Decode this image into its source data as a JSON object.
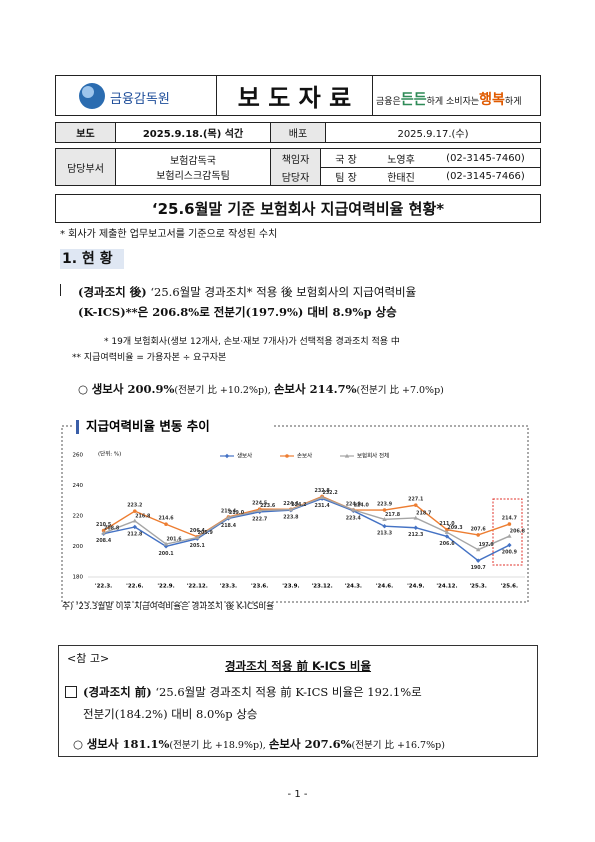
{
  "header": {
    "logo": "금융감독원",
    "title": "보 도 자 료",
    "slogan": [
      "금융은",
      "든든",
      "하게 소비자는",
      "행복",
      "하게"
    ]
  },
  "info_table": {
    "release_label": "보도",
    "release": "2025.9.18.(목) 석간",
    "distribution_label": "배포",
    "distribution": "2025.9.17.(수)",
    "dept_label": "담당부서",
    "dept": [
      "보험감독국",
      "보험리스크감독팀"
    ],
    "contacts": [
      [
        "책임자",
        "국 장",
        "노영후",
        "(02-3145-7460)"
      ],
      [
        "담당자",
        "팀 장",
        "한태진",
        "(02-3145-7466)"
      ]
    ]
  },
  "document": {
    "title": "‘25.6월말 기준 보험회사 지급여력비율 현황*",
    "note": "* 회사가 제출한 업무보고서를 기준으로 작성된 수치",
    "section": "1. 현 황",
    "bullet": [
      "(경과조치 後)",
      " ‘25.6월말 경과조치* 적용 後 보험회사의 지급여력비율",
      "(K-ICS)**은 206.8%로 전분기(197.9%) 대비 8.9%p 상승"
    ],
    "notes": [
      "* 19개 보험회사(생보 12개사, 손보·재보 7개사)가 선택적용 경과조치 적용 中",
      "** 지급여력비율 = 가용자본 ÷ 요구자본"
    ],
    "sub_bullet": [
      "○ ",
      "생보사 200.9%",
      "(전분기 比 +10.2%p), ",
      "손보사 214.7%",
      "(전분기 比 +7.0%p)"
    ]
  },
  "chart_data": {
    "type": "line",
    "title": "지급여력비율 변동 추이",
    "unit": "(단위: %)",
    "categories": [
      "'22.3.",
      "'22.6.",
      "'22.9.",
      "'22.12.",
      "'23.3.",
      "'23.6.",
      "'23.9.",
      "'23.12.",
      "'24.3.",
      "'24.6.",
      "'24.9.",
      "'24.12.",
      "'25.3.",
      "'25.6."
    ],
    "series": [
      {
        "name": "생보사",
        "color": "#4472c4",
        "marker": "diamond",
        "values": [
          208.4,
          212.8,
          200.1,
          205.1,
          218.4,
          222.7,
          223.8,
          231.4,
          223.4,
          213.3,
          212.3,
          206.6,
          190.7,
          200.9
        ],
        "value_labels": [
          "208.4",
          "212.8",
          "200.1",
          "205.1",
          "218.4",
          "222.7",
          "223.8",
          "231.4",
          "223.4",
          "213.3",
          "212.3",
          "206.6",
          "190.7",
          "200.9"
        ]
      },
      {
        "name": "손보사",
        "color": "#ed7d31",
        "marker": "circle",
        "values": [
          210.5,
          223.2,
          214.6,
          206.4,
          219.4,
          224.5,
          224.4,
          232.8,
          224.0,
          223.9,
          227.1,
          211.0,
          207.6,
          214.7
        ],
        "value_labels": [
          "210.5",
          "223.2",
          "214.6",
          "206.4",
          "219.4",
          "224.5",
          "224.4",
          "232.8",
          "224.0",
          "223.9",
          "227.1",
          "211.0",
          "207.6",
          "214.7"
        ]
      },
      {
        "name": "보험회사 전체",
        "color": "#a5a5a5",
        "marker": "triangle",
        "values": [
          208.8,
          216.8,
          201.6,
          205.9,
          219.0,
          223.6,
          224.2,
          232.2,
          224.0,
          217.8,
          218.7,
          209.3,
          197.9,
          206.8
        ],
        "value_labels": [
          "208.8",
          "216.8",
          "201.6",
          "205.9",
          "219.0",
          "223.6",
          "224.2",
          "232.2",
          "224.0",
          "217.8",
          "218.7",
          "209.3",
          "197.9",
          "206.8"
        ]
      }
    ],
    "ylim": [
      180,
      260
    ],
    "yticks": [
      180,
      200,
      220,
      240,
      260
    ],
    "grid": false,
    "legend": "top",
    "footnote": "주) ‘23.3월말 이후 지급여력비율은 경과조치 後 K-ICS비율"
  },
  "reference": {
    "label": "<참 고>",
    "heading": "경과조치 적용 前 K-ICS 비율",
    "bullet": [
      "(경과조치 前)",
      " ‘25.6월말 경과조치 적용 前 K-ICS 비율은 192.1%로",
      "전분기(184.2%) 대비 8.0%p 상승"
    ],
    "sub_bullet": [
      "○ ",
      "생보사 181.1%",
      "(전분기 比 +18.9%p), ",
      "손보사 207.6%",
      "(전분기 比 +16.7%p)"
    ]
  },
  "page_number": "- 1 -"
}
